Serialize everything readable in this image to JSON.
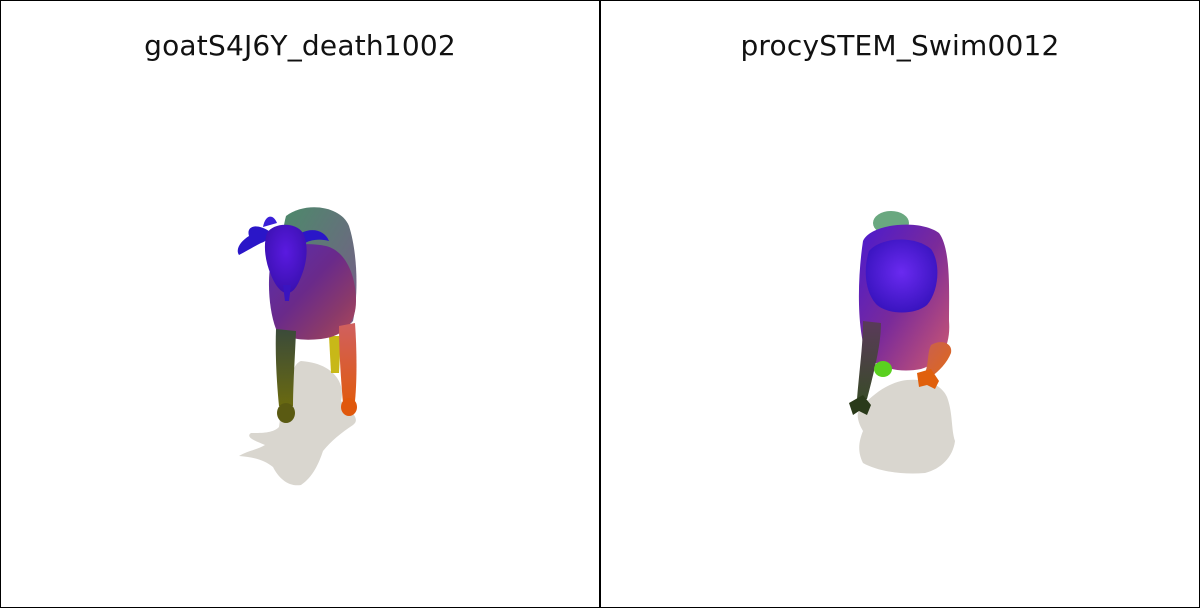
{
  "panels": [
    {
      "title": "goatS4J6Y_death1002",
      "subject_icon": "goat-mesh-render"
    },
    {
      "title": "procySTEM_Swim0012",
      "subject_icon": "raccoon-mesh-render"
    }
  ],
  "colors": {
    "border": "#000000",
    "background": "#ffffff",
    "shadow": "#d9d6cf"
  }
}
